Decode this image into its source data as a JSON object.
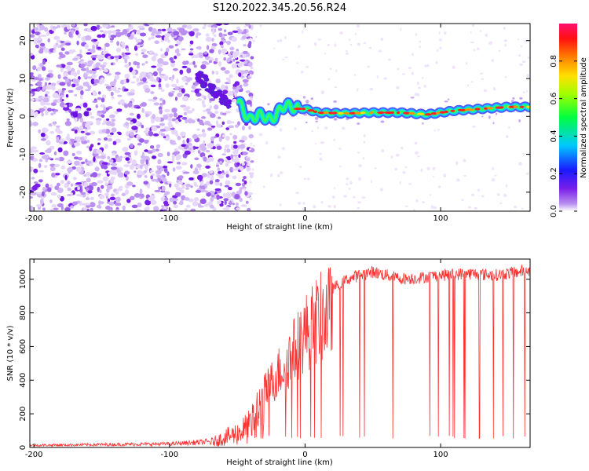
{
  "title": "S120.2022.345.20.56.R24",
  "chart_data": [
    {
      "type": "heatmap",
      "xlabel": "Height of straight line (km)",
      "ylabel": "Frequency (Hz)",
      "xlim": [
        -203,
        166
      ],
      "ylim": [
        -25,
        24.5
      ],
      "xticks": [
        -200,
        -100,
        0,
        100
      ],
      "yticks": [
        -20,
        -10,
        0,
        10,
        20
      ],
      "colorbar": {
        "label": "Normalized spectral amplitude",
        "range": [
          0,
          1
        ],
        "ticks": [
          "0.0",
          "0.2",
          "0.4",
          "0.6",
          "0.8"
        ],
        "colormap": "rainbow (purple → blue → cyan → green → yellow → orange → red → pink)"
      },
      "ridge": {
        "description": "dominant frequency line",
        "x": [
          -50,
          -45,
          -40,
          -35,
          -30,
          -25,
          -20,
          -15,
          -10,
          -5,
          0,
          10,
          30,
          50,
          70,
          90,
          100,
          110,
          130,
          150,
          166
        ],
        "frequency": [
          5,
          1,
          -1,
          0.5,
          0,
          -1,
          1,
          3,
          2.5,
          2,
          2,
          1,
          0.8,
          1,
          1,
          0.5,
          1,
          1.5,
          2,
          2.5,
          2.5
        ]
      },
      "noise_region": {
        "x_range": [
          -203,
          -45
        ],
        "description": "scattered low-amplitude purple speckle"
      },
      "feature": {
        "x_range": [
          -80,
          -55
        ],
        "frequency_range": [
          3,
          11
        ],
        "description": "strong purple band sloping down toward the ridge"
      }
    },
    {
      "type": "line",
      "xlabel": "Height of straight line (km)",
      "ylabel": "SNR (10 * v/v)",
      "xlim": [
        -203,
        166
      ],
      "ylim": [
        0,
        1120
      ],
      "xticks": [
        -200,
        -100,
        0,
        100
      ],
      "yticks": [
        0,
        200,
        400,
        600,
        800,
        1000
      ],
      "series": [
        {
          "color": "#ff3030",
          "envelope_x": [
            -203,
            -150,
            -100,
            -70,
            -60,
            -50,
            -40,
            -30,
            -20,
            -10,
            0,
            10,
            20,
            30,
            40,
            50,
            60,
            70,
            80,
            100,
            120,
            140,
            166
          ],
          "envelope_y": [
            15,
            20,
            25,
            40,
            80,
            120,
            180,
            380,
            520,
            650,
            800,
            900,
            960,
            1010,
            1040,
            1060,
            1040,
            1020,
            1020,
            1040,
            1050,
            1040,
            1070
          ],
          "dips_to": 50
        }
      ]
    }
  ]
}
